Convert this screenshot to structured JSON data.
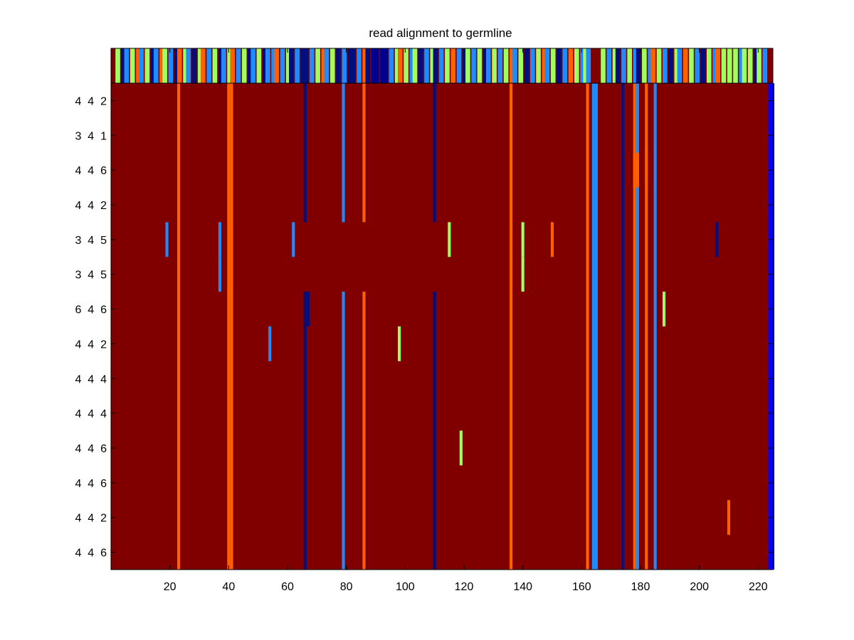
{
  "chart_data": {
    "type": "heatmap",
    "title": "read alignment to germline",
    "xlabel": "",
    "ylabel": "",
    "xlim": [
      0.5,
      225.5
    ],
    "xticks": [
      20,
      40,
      60,
      80,
      100,
      120,
      140,
      160,
      180,
      200,
      220
    ],
    "grid": false,
    "legend": "none",
    "colors": {
      "background": "#800000",
      "dark_blue": "#000f80",
      "navy": "#000090",
      "blue": "#0000ff",
      "sky_blue": "#1e8cff",
      "light_green": "#a0ff60",
      "orange": "#ff6000"
    },
    "row_labels": [
      "4 4 2",
      "3 4 1",
      "4 4 6",
      "4 4 2",
      "3 4 5",
      "3 4 5",
      "6 4 6",
      "4 4 2",
      "4 4 4",
      "4 4 4",
      "4 4 6",
      "4 4 6",
      "4 4 2",
      "4 4 6"
    ],
    "germline_strip": [
      {
        "x": 2,
        "color": "#a0ff60"
      },
      {
        "x": 4,
        "color": "#000f80"
      },
      {
        "x": 5,
        "color": "#1e8cff"
      },
      {
        "x": 7,
        "color": "#a0ff60"
      },
      {
        "x": 9,
        "color": "#ff6000"
      },
      {
        "x": 10,
        "color": "#1e8cff"
      },
      {
        "x": 12,
        "color": "#a0ff60"
      },
      {
        "x": 14,
        "color": "#000f80"
      },
      {
        "x": 15,
        "color": "#1e8cff"
      },
      {
        "x": 17,
        "color": "#ff6000"
      },
      {
        "x": 18,
        "color": "#a0ff60"
      },
      {
        "x": 20,
        "color": "#1e8cff"
      },
      {
        "x": 22,
        "color": "#000f80"
      },
      {
        "x": 23,
        "color": "#ff6000"
      },
      {
        "x": 25,
        "color": "#a0ff60"
      },
      {
        "x": 26,
        "color": "#1e8cff"
      },
      {
        "x": 28,
        "color": "#000f80"
      },
      {
        "x": 30,
        "color": "#a0ff60"
      },
      {
        "x": 31,
        "color": "#ff6000"
      },
      {
        "x": 33,
        "color": "#1e8cff"
      },
      {
        "x": 35,
        "color": "#a0ff60"
      },
      {
        "x": 37,
        "color": "#000f80"
      },
      {
        "x": 38,
        "color": "#1e8cff"
      },
      {
        "x": 40,
        "color": "#a0ff60"
      },
      {
        "x": 41,
        "color": "#ff6000"
      },
      {
        "x": 43,
        "color": "#1e8cff"
      },
      {
        "x": 45,
        "color": "#a0ff60"
      },
      {
        "x": 47,
        "color": "#000f80"
      },
      {
        "x": 48,
        "color": "#1e8cff"
      },
      {
        "x": 50,
        "color": "#a0ff60"
      },
      {
        "x": 52,
        "color": "#000f80"
      },
      {
        "x": 53,
        "color": "#1e8cff"
      },
      {
        "x": 55,
        "color": "#1e8cff"
      },
      {
        "x": 56,
        "color": "#ff6000"
      },
      {
        "x": 58,
        "color": "#1e8cff"
      },
      {
        "x": 60,
        "color": "#a0ff60"
      },
      {
        "x": 61,
        "color": "#000f80"
      },
      {
        "x": 63,
        "color": "#1e8cff"
      },
      {
        "x": 65,
        "color": "#000f80"
      },
      {
        "x": 66,
        "color": "#000f80"
      },
      {
        "x": 68,
        "color": "#1e8cff"
      },
      {
        "x": 70,
        "color": "#a0ff60"
      },
      {
        "x": 72,
        "color": "#ff6000"
      },
      {
        "x": 73,
        "color": "#1e8cff"
      },
      {
        "x": 75,
        "color": "#a0ff60"
      },
      {
        "x": 77,
        "color": "#000f80"
      },
      {
        "x": 79,
        "color": "#1e8cff"
      },
      {
        "x": 81,
        "color": "#000f80"
      },
      {
        "x": 82,
        "color": "#000f80"
      },
      {
        "x": 84,
        "color": "#1e8cff"
      },
      {
        "x": 86,
        "color": "#ff6000"
      },
      {
        "x": 87,
        "color": "#000f80"
      },
      {
        "x": 89,
        "color": "#000090"
      },
      {
        "x": 90,
        "color": "#000090"
      },
      {
        "x": 92,
        "color": "#000090"
      },
      {
        "x": 93,
        "color": "#000090"
      },
      {
        "x": 95,
        "color": "#1e8cff"
      },
      {
        "x": 97,
        "color": "#a0ff60"
      },
      {
        "x": 98,
        "color": "#ff6000"
      },
      {
        "x": 100,
        "color": "#a0ff60"
      },
      {
        "x": 102,
        "color": "#1e8cff"
      },
      {
        "x": 103,
        "color": "#a0ff60"
      },
      {
        "x": 105,
        "color": "#000f80"
      },
      {
        "x": 107,
        "color": "#1e8cff"
      },
      {
        "x": 109,
        "color": "#a0ff60"
      },
      {
        "x": 110,
        "color": "#000f80"
      },
      {
        "x": 112,
        "color": "#1e8cff"
      },
      {
        "x": 114,
        "color": "#a0ff60"
      },
      {
        "x": 116,
        "color": "#ff6000"
      },
      {
        "x": 118,
        "color": "#1e8cff"
      },
      {
        "x": 120,
        "color": "#000f80"
      },
      {
        "x": 121,
        "color": "#a0ff60"
      },
      {
        "x": 123,
        "color": "#1e8cff"
      },
      {
        "x": 125,
        "color": "#a0ff60"
      },
      {
        "x": 127,
        "color": "#000f80"
      },
      {
        "x": 128,
        "color": "#1e8cff"
      },
      {
        "x": 130,
        "color": "#a0ff60"
      },
      {
        "x": 132,
        "color": "#1e8cff"
      },
      {
        "x": 134,
        "color": "#a0ff60"
      },
      {
        "x": 136,
        "color": "#ff6000"
      },
      {
        "x": 137,
        "color": "#1e8cff"
      },
      {
        "x": 139,
        "color": "#a0ff60"
      },
      {
        "x": 141,
        "color": "#000f80"
      },
      {
        "x": 143,
        "color": "#1e8cff"
      },
      {
        "x": 145,
        "color": "#a0ff60"
      },
      {
        "x": 147,
        "color": "#ff6000"
      },
      {
        "x": 148,
        "color": "#1e8cff"
      },
      {
        "x": 150,
        "color": "#a0ff60"
      },
      {
        "x": 152,
        "color": "#000f80"
      },
      {
        "x": 154,
        "color": "#1e8cff"
      },
      {
        "x": 156,
        "color": "#ff6000"
      },
      {
        "x": 158,
        "color": "#a0ff60"
      },
      {
        "x": 160,
        "color": "#1e8cff"
      },
      {
        "x": 161,
        "color": "#a0ff60"
      },
      {
        "x": 162,
        "color": "#1e8cff"
      },
      {
        "x": 167,
        "color": "#a0ff60"
      },
      {
        "x": 169,
        "color": "#1e8cff"
      },
      {
        "x": 171,
        "color": "#a0ff60"
      },
      {
        "x": 172,
        "color": "#000f80"
      },
      {
        "x": 174,
        "color": "#1e8cff"
      },
      {
        "x": 176,
        "color": "#a0ff60"
      },
      {
        "x": 178,
        "color": "#1e8cff"
      },
      {
        "x": 179,
        "color": "#000f80"
      },
      {
        "x": 181,
        "color": "#a0ff60"
      },
      {
        "x": 183,
        "color": "#1e8cff"
      },
      {
        "x": 184,
        "color": "#ff6000"
      },
      {
        "x": 186,
        "color": "#a0ff60"
      },
      {
        "x": 188,
        "color": "#1e8cff"
      },
      {
        "x": 190,
        "color": "#000f80"
      },
      {
        "x": 192,
        "color": "#a0ff60"
      },
      {
        "x": 193,
        "color": "#1e8cff"
      },
      {
        "x": 195,
        "color": "#ff6000"
      },
      {
        "x": 197,
        "color": "#a0ff60"
      },
      {
        "x": 199,
        "color": "#1e8cff"
      },
      {
        "x": 201,
        "color": "#000f80"
      },
      {
        "x": 203,
        "color": "#a0ff60"
      },
      {
        "x": 205,
        "color": "#1e8cff"
      },
      {
        "x": 206,
        "color": "#ff6000"
      },
      {
        "x": 208,
        "color": "#a0ff60"
      },
      {
        "x": 210,
        "color": "#a0ff60"
      },
      {
        "x": 212,
        "color": "#a0ff60"
      },
      {
        "x": 214,
        "color": "#1e8cff"
      },
      {
        "x": 215,
        "color": "#a0ff60"
      },
      {
        "x": 217,
        "color": "#a0ff60"
      },
      {
        "x": 219,
        "color": "#000f80"
      },
      {
        "x": 220,
        "color": "#a0ff60"
      },
      {
        "x": 222,
        "color": "#1e8cff"
      }
    ],
    "mismatch_columns": [
      {
        "x": 23,
        "rows": [
          1,
          14
        ],
        "color": "#ff6000"
      },
      {
        "x": 40,
        "rows": [
          1,
          14
        ],
        "color": "#ff6000"
      },
      {
        "x": 41,
        "rows": [
          1,
          14
        ],
        "color": "#ff6000"
      },
      {
        "x": 66,
        "rows": [
          1,
          4
        ],
        "color": "#000f80"
      },
      {
        "x": 66,
        "rows": [
          7,
          14
        ],
        "color": "#000f80"
      },
      {
        "x": 67,
        "rows": [
          7,
          7
        ],
        "color": "#000f80"
      },
      {
        "x": 79,
        "rows": [
          1,
          4
        ],
        "color": "#1e8cff"
      },
      {
        "x": 79,
        "rows": [
          7,
          14
        ],
        "color": "#1e8cff"
      },
      {
        "x": 86,
        "rows": [
          1,
          4
        ],
        "color": "#ff6000"
      },
      {
        "x": 86,
        "rows": [
          7,
          14
        ],
        "color": "#ff6000"
      },
      {
        "x": 110,
        "rows": [
          1,
          4
        ],
        "color": "#000f80"
      },
      {
        "x": 110,
        "rows": [
          7,
          14
        ],
        "color": "#000f80"
      },
      {
        "x": 136,
        "rows": [
          1,
          14
        ],
        "color": "#ff6000"
      },
      {
        "x": 162,
        "rows": [
          1,
          14
        ],
        "color": "#ff6000"
      },
      {
        "x": 164,
        "rows": [
          1,
          14
        ],
        "color": "#1e8cff"
      },
      {
        "x": 165,
        "rows": [
          1,
          14
        ],
        "color": "#1e8cff"
      },
      {
        "x": 174,
        "rows": [
          1,
          14
        ],
        "color": "#000f80"
      },
      {
        "x": 178,
        "rows": [
          1,
          14
        ],
        "color": "#ff6000"
      },
      {
        "x": 179,
        "rows": [
          1,
          14
        ],
        "color": "#1e8cff"
      },
      {
        "x": 182,
        "rows": [
          1,
          14
        ],
        "color": "#ff6000"
      },
      {
        "x": 185,
        "rows": [
          1,
          14
        ],
        "color": "#1e8cff"
      },
      {
        "x": 224,
        "rows": [
          1,
          14
        ],
        "color": "#0000ff"
      },
      {
        "x": 225,
        "rows": [
          1,
          14
        ],
        "color": "#0000ff"
      }
    ],
    "mismatch_cells": [
      {
        "x": 178,
        "row": 3,
        "color": "#ff6000"
      },
      {
        "x": 179,
        "row": 3,
        "color": "#ff6000"
      },
      {
        "x": 19,
        "row": 5,
        "color": "#1e8cff"
      },
      {
        "x": 37,
        "row": 5,
        "color": "#1e8cff"
      },
      {
        "x": 62,
        "row": 5,
        "color": "#1e8cff"
      },
      {
        "x": 115,
        "row": 5,
        "color": "#a0ff60"
      },
      {
        "x": 140,
        "row": 5,
        "color": "#a0ff60"
      },
      {
        "x": 150,
        "row": 5,
        "color": "#ff6000"
      },
      {
        "x": 206,
        "row": 5,
        "color": "#000f80"
      },
      {
        "x": 37,
        "row": 6,
        "color": "#1e8cff"
      },
      {
        "x": 140,
        "row": 6,
        "color": "#a0ff60"
      },
      {
        "x": 188,
        "row": 7,
        "color": "#a0ff60"
      },
      {
        "x": 54,
        "row": 8,
        "color": "#1e8cff"
      },
      {
        "x": 98,
        "row": 8,
        "color": "#a0ff60"
      },
      {
        "x": 119,
        "row": 11,
        "color": "#a0ff60"
      },
      {
        "x": 210,
        "row": 13,
        "color": "#ff6000"
      }
    ]
  }
}
